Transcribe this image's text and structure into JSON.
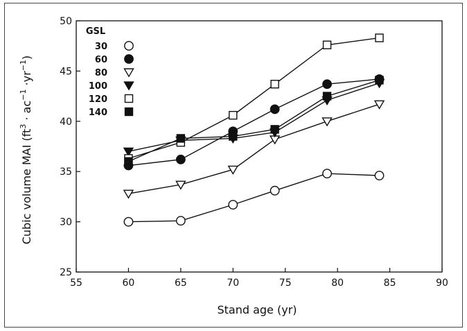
{
  "chart_data": {
    "type": "line",
    "xlabel": "Stand age (yr)",
    "ylabel_parts": {
      "main": "Cubic volume MAI (ft",
      "sup1": "3",
      "mid": " · ac",
      "sup2": "−1",
      "mid2": " ·yr",
      "sup3": "−1",
      "end": ")"
    },
    "xlim": [
      55,
      90
    ],
    "ylim": [
      25,
      50
    ],
    "xticks": [
      55,
      60,
      65,
      70,
      75,
      80,
      85,
      90
    ],
    "yticks": [
      25,
      30,
      35,
      40,
      45,
      50
    ],
    "grid": false,
    "legend": {
      "title": "GSL",
      "placement": "top-left"
    },
    "x": [
      60,
      65,
      70,
      74,
      79,
      84
    ],
    "series": [
      {
        "name": "30",
        "marker": "circle-open",
        "values": [
          30.0,
          30.1,
          31.7,
          33.1,
          34.8,
          34.6
        ]
      },
      {
        "name": "60",
        "marker": "circle-filled",
        "values": [
          35.6,
          36.2,
          39.0,
          41.2,
          43.7,
          44.2
        ]
      },
      {
        "name": "80",
        "marker": "tri-open",
        "values": [
          32.8,
          33.7,
          35.2,
          38.2,
          40.0,
          41.7
        ]
      },
      {
        "name": "100",
        "marker": "tri-filled",
        "values": [
          37.0,
          38.1,
          38.3,
          38.9,
          42.1,
          43.8
        ]
      },
      {
        "name": "120",
        "marker": "square-open",
        "values": [
          36.3,
          37.9,
          40.6,
          43.7,
          47.6,
          48.3
        ]
      },
      {
        "name": "140",
        "marker": "square-filled",
        "values": [
          36.0,
          38.3,
          38.5,
          39.2,
          42.5,
          44.1
        ]
      }
    ]
  }
}
